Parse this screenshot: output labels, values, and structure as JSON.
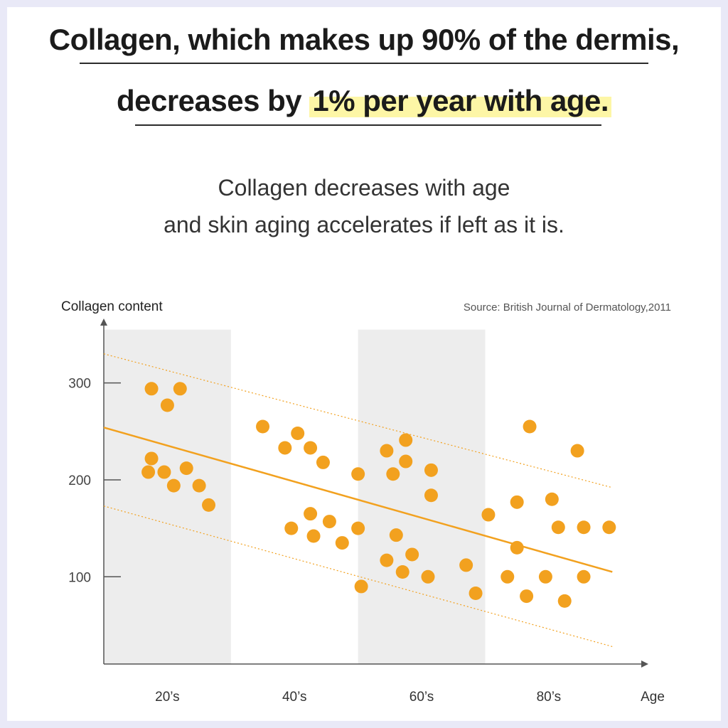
{
  "headline": {
    "line1": "Collagen, which makes up 90% of the dermis,",
    "line2_plain": "decreases by ",
    "line2_highlight": "1% per year with age."
  },
  "subtitle": {
    "line1": "Collagen decreases with age",
    "line2": "and skin aging accelerates if left as it is."
  },
  "colors": {
    "accent": "#f2a11f",
    "band": "#ededed",
    "highlight": "#fdf6a6"
  },
  "chart_data": {
    "type": "scatter",
    "ylabel": "Collagen content",
    "xlabel": "Age",
    "source": "Source: British Journal of Dermatology,2011",
    "yticks": [
      100,
      200,
      300
    ],
    "ylim": [
      10,
      365
    ],
    "xlim": [
      10,
      95
    ],
    "xtick_labels": [
      {
        "label": "20’s",
        "x": 20
      },
      {
        "label": "40’s",
        "x": 40
      },
      {
        "label": "60’s",
        "x": 60
      },
      {
        "label": "80’s",
        "x": 80
      }
    ],
    "shaded_age_ranges": [
      [
        10,
        30
      ],
      [
        50,
        70
      ]
    ],
    "trend_line": {
      "x": [
        10,
        90
      ],
      "y": [
        254,
        105
      ]
    },
    "upper_band": {
      "x": [
        10,
        90
      ],
      "y": [
        330,
        192
      ]
    },
    "lower_band": {
      "x": [
        10,
        90
      ],
      "y": [
        173,
        28
      ]
    },
    "points": [
      {
        "x": 17.0,
        "y": 208
      },
      {
        "x": 17.5,
        "y": 222
      },
      {
        "x": 17.5,
        "y": 294
      },
      {
        "x": 19.5,
        "y": 208
      },
      {
        "x": 20.0,
        "y": 277
      },
      {
        "x": 21.0,
        "y": 194
      },
      {
        "x": 22.0,
        "y": 294
      },
      {
        "x": 23.0,
        "y": 212
      },
      {
        "x": 25.0,
        "y": 194
      },
      {
        "x": 26.5,
        "y": 174
      },
      {
        "x": 35.0,
        "y": 255
      },
      {
        "x": 38.5,
        "y": 233
      },
      {
        "x": 39.5,
        "y": 150
      },
      {
        "x": 40.5,
        "y": 248
      },
      {
        "x": 42.5,
        "y": 165
      },
      {
        "x": 42.5,
        "y": 233
      },
      {
        "x": 43.0,
        "y": 142
      },
      {
        "x": 44.5,
        "y": 218
      },
      {
        "x": 45.5,
        "y": 157
      },
      {
        "x": 47.5,
        "y": 135
      },
      {
        "x": 50.0,
        "y": 206
      },
      {
        "x": 50.0,
        "y": 150
      },
      {
        "x": 50.5,
        "y": 90
      },
      {
        "x": 54.5,
        "y": 230
      },
      {
        "x": 54.5,
        "y": 117
      },
      {
        "x": 55.5,
        "y": 206
      },
      {
        "x": 56.0,
        "y": 143
      },
      {
        "x": 57.0,
        "y": 105
      },
      {
        "x": 57.5,
        "y": 241
      },
      {
        "x": 57.5,
        "y": 219
      },
      {
        "x": 58.5,
        "y": 123
      },
      {
        "x": 61.0,
        "y": 100
      },
      {
        "x": 61.5,
        "y": 210
      },
      {
        "x": 61.5,
        "y": 184
      },
      {
        "x": 67.0,
        "y": 112
      },
      {
        "x": 68.5,
        "y": 83
      },
      {
        "x": 70.5,
        "y": 164
      },
      {
        "x": 73.5,
        "y": 100
      },
      {
        "x": 75.0,
        "y": 130
      },
      {
        "x": 75.0,
        "y": 177
      },
      {
        "x": 76.5,
        "y": 80
      },
      {
        "x": 77.0,
        "y": 255
      },
      {
        "x": 79.5,
        "y": 100
      },
      {
        "x": 80.5,
        "y": 180
      },
      {
        "x": 81.5,
        "y": 151
      },
      {
        "x": 82.5,
        "y": 75
      },
      {
        "x": 84.5,
        "y": 230
      },
      {
        "x": 85.5,
        "y": 151
      },
      {
        "x": 85.5,
        "y": 100
      },
      {
        "x": 89.5,
        "y": 151
      }
    ]
  }
}
